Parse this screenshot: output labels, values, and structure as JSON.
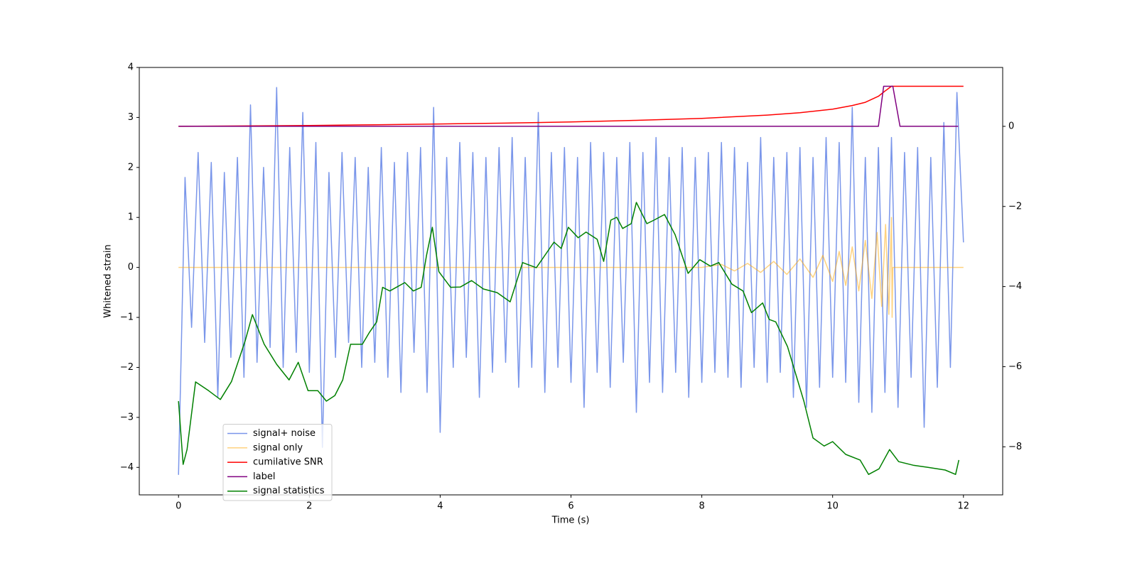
{
  "chart_data": {
    "type": "line",
    "xlabel": "Time (s)",
    "ylabel": "Whitened strain",
    "xlim": [
      -0.6,
      12.6
    ],
    "ylim": [
      -4.55,
      4
    ],
    "y2lim": [
      -9.2,
      1.47
    ],
    "xticks": [
      0,
      2,
      4,
      6,
      8,
      10,
      12
    ],
    "yticks": [
      {
        "value": -4,
        "label": "−4"
      },
      {
        "value": -3,
        "label": "−3"
      },
      {
        "value": -2,
        "label": "−2"
      },
      {
        "value": -1,
        "label": "−1"
      },
      0,
      1,
      2,
      3,
      4
    ],
    "y2ticks": [
      {
        "value": -8,
        "label": "−8"
      },
      {
        "value": -6,
        "label": "−6"
      },
      {
        "value": -4,
        "label": "−4"
      },
      {
        "value": -2,
        "label": "−2"
      },
      0
    ],
    "legend": "lower left",
    "series": [
      {
        "name": "signal+ noise",
        "color": "royalblue",
        "opacity": 0.7,
        "axis": "y",
        "x": [
          0,
          0.1,
          0.2,
          0.3,
          0.4,
          0.5,
          0.6,
          0.7,
          0.8,
          0.9,
          1,
          1.1,
          1.2,
          1.3,
          1.4,
          1.5,
          1.6,
          1.7,
          1.8,
          1.9,
          2,
          2.1,
          2.2,
          2.3,
          2.4,
          2.5,
          2.6,
          2.7,
          2.8,
          2.9,
          3,
          3.1,
          3.2,
          3.3,
          3.4,
          3.5,
          3.6,
          3.7,
          3.8,
          3.9,
          4,
          4.1,
          4.2,
          4.3,
          4.4,
          4.5,
          4.6,
          4.7,
          4.8,
          4.9,
          5,
          5.1,
          5.2,
          5.3,
          5.4,
          5.5,
          5.6,
          5.7,
          5.8,
          5.9,
          6,
          6.1,
          6.2,
          6.3,
          6.4,
          6.5,
          6.6,
          6.7,
          6.8,
          6.9,
          7,
          7.1,
          7.2,
          7.3,
          7.4,
          7.5,
          7.6,
          7.7,
          7.8,
          7.9,
          8,
          8.1,
          8.2,
          8.3,
          8.4,
          8.5,
          8.6,
          8.7,
          8.8,
          8.9,
          9,
          9.1,
          9.2,
          9.3,
          9.4,
          9.5,
          9.6,
          9.7,
          9.8,
          9.9,
          10,
          10.1,
          10.2,
          10.3,
          10.4,
          10.5,
          10.6,
          10.7,
          10.8,
          10.9,
          11,
          11.1,
          11.2,
          11.3,
          11.4,
          11.5,
          11.6,
          11.7,
          11.8,
          11.9,
          12
        ],
        "values": [
          -4.15,
          1.8,
          -1.2,
          2.3,
          -1.5,
          2.1,
          -2.6,
          1.9,
          -1.8,
          2.2,
          -2.2,
          3.25,
          -1.9,
          2.0,
          -1.6,
          3.6,
          -2.0,
          2.4,
          -1.7,
          3.1,
          -2.1,
          2.5,
          -3.6,
          1.9,
          -1.8,
          2.3,
          -1.5,
          2.2,
          -2.0,
          2.0,
          -1.9,
          2.4,
          -2.2,
          2.1,
          -2.5,
          2.3,
          -1.7,
          2.4,
          -2.5,
          3.2,
          -3.3,
          2.2,
          -2.0,
          2.5,
          -1.8,
          2.3,
          -2.6,
          2.2,
          -2.1,
          2.4,
          -1.9,
          2.6,
          -2.4,
          2.2,
          -2.0,
          3.1,
          -2.5,
          2.3,
          -2.0,
          2.4,
          -2.3,
          2.2,
          -2.8,
          2.5,
          -2.1,
          2.3,
          -2.4,
          2.2,
          -1.9,
          2.5,
          -2.9,
          2.3,
          -2.3,
          2.6,
          -2.5,
          2.2,
          -2.1,
          2.4,
          -2.6,
          2.2,
          -2.3,
          2.3,
          -2.1,
          2.5,
          -2.2,
          2.4,
          -2.4,
          2.1,
          -2.0,
          2.6,
          -2.3,
          2.2,
          -2.1,
          2.3,
          -2.6,
          2.4,
          -2.8,
          2.2,
          -2.4,
          2.6,
          -2.2,
          2.5,
          -2.3,
          3.2,
          -2.7,
          2.2,
          -2.9,
          2.4,
          -2.5,
          2.6,
          -2.8,
          2.3,
          -2.2,
          2.4,
          -3.2,
          2.2,
          -2.4,
          2.9,
          -2.0,
          3.5,
          0.5
        ]
      },
      {
        "name": "signal only",
        "color": "orange",
        "opacity": 0.5,
        "axis": "y",
        "x": [
          0,
          8,
          8.3,
          8.5,
          8.7,
          8.9,
          9.1,
          9.3,
          9.5,
          9.7,
          9.85,
          10,
          10.1,
          10.2,
          10.3,
          10.4,
          10.5,
          10.6,
          10.68,
          10.75,
          10.81,
          10.86,
          10.9,
          10.91,
          10.92,
          12
        ],
        "values": [
          0,
          0,
          0.06,
          -0.07,
          0.08,
          -0.1,
          0.12,
          -0.14,
          0.17,
          -0.2,
          0.24,
          -0.28,
          0.32,
          -0.36,
          0.41,
          -0.47,
          0.54,
          -0.62,
          0.7,
          -0.78,
          0.86,
          -0.94,
          1.0,
          -1.0,
          0,
          0
        ]
      },
      {
        "name": "cumilative SNR",
        "color": "red",
        "opacity": 1,
        "axis": "y2",
        "x": [
          0,
          1,
          2,
          3,
          4,
          5,
          6,
          7,
          8,
          9,
          9.5,
          10,
          10.3,
          10.5,
          10.7,
          10.8,
          10.9,
          12
        ],
        "values": [
          0,
          0.01,
          0.02,
          0.04,
          0.06,
          0.08,
          0.11,
          0.15,
          0.2,
          0.28,
          0.34,
          0.43,
          0.52,
          0.6,
          0.75,
          0.88,
          1,
          1
        ]
      },
      {
        "name": "label",
        "color": "purple",
        "opacity": 1,
        "axis": "y2",
        "x": [
          0,
          10.7,
          10.78,
          10.92,
          11.03,
          11.92
        ],
        "values": [
          0,
          0,
          1,
          1,
          0,
          0
        ]
      },
      {
        "name": "signal statistics",
        "color": "green",
        "opacity": 1,
        "axis": "y2",
        "x": [
          0,
          0.07,
          0.13,
          0.26,
          0.46,
          0.64,
          0.81,
          1.02,
          1.13,
          1.31,
          1.5,
          1.69,
          1.83,
          1.98,
          2.13,
          2.26,
          2.39,
          2.51,
          2.63,
          2.81,
          2.92,
          3.03,
          3.12,
          3.23,
          3.33,
          3.46,
          3.59,
          3.71,
          3.79,
          3.88,
          3.98,
          4.16,
          4.31,
          4.48,
          4.66,
          4.87,
          5.07,
          5.26,
          5.47,
          5.74,
          5.85,
          5.96,
          6.11,
          6.23,
          6.4,
          6.5,
          6.61,
          6.7,
          6.79,
          6.92,
          7.0,
          7.16,
          7.27,
          7.43,
          7.59,
          7.79,
          7.97,
          8.13,
          8.26,
          8.46,
          8.63,
          8.76,
          8.93,
          9.03,
          9.13,
          9.31,
          9.56,
          9.7,
          9.87,
          10.0,
          10.2,
          10.42,
          10.55,
          10.71,
          10.87,
          11.01,
          11.23,
          11.45,
          11.72,
          11.88,
          11.93
        ],
        "values": [
          -6.86,
          -8.44,
          -8.07,
          -6.38,
          -6.6,
          -6.82,
          -6.37,
          -5.35,
          -4.7,
          -5.44,
          -5.94,
          -6.33,
          -5.89,
          -6.6,
          -6.6,
          -6.86,
          -6.72,
          -6.33,
          -5.44,
          -5.44,
          -5.14,
          -4.88,
          -4.02,
          -4.11,
          -4.02,
          -3.9,
          -4.11,
          -4.02,
          -3.23,
          -2.52,
          -3.63,
          -4.02,
          -4.01,
          -3.85,
          -4.06,
          -4.15,
          -4.38,
          -3.4,
          -3.53,
          -2.89,
          -3.05,
          -2.52,
          -2.78,
          -2.64,
          -2.82,
          -3.37,
          -2.34,
          -2.27,
          -2.55,
          -2.43,
          -1.9,
          -2.43,
          -2.34,
          -2.2,
          -2.7,
          -3.67,
          -3.33,
          -3.49,
          -3.4,
          -3.94,
          -4.11,
          -4.65,
          -4.41,
          -4.82,
          -4.88,
          -5.5,
          -6.86,
          -7.78,
          -7.98,
          -7.87,
          -8.19,
          -8.33,
          -8.69,
          -8.55,
          -8.07,
          -8.37,
          -8.46,
          -8.51,
          -8.58,
          -8.69,
          -8.33
        ]
      }
    ]
  }
}
